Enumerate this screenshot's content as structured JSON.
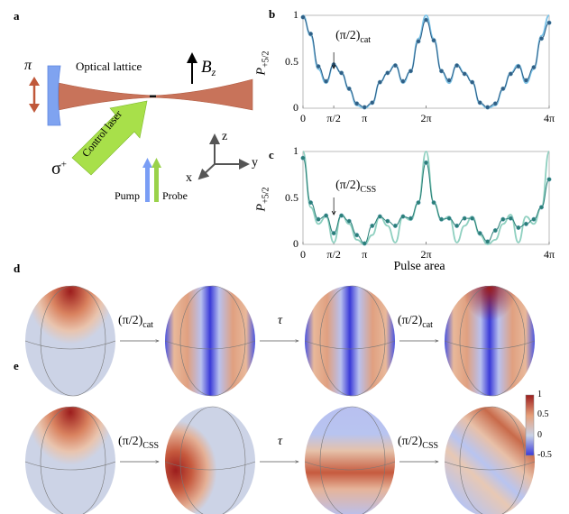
{
  "panels": {
    "a": "a",
    "b": "b",
    "c": "c",
    "d": "d",
    "e": "e"
  },
  "setup": {
    "optical_lattice": "Optical lattice",
    "magnetic_field": "B",
    "magnetic_field_sub": "z",
    "pi_polarization": "π",
    "sigma_polarization": "σ",
    "sigma_sup": "+",
    "control_laser": "Control laser",
    "pump": "Pump",
    "probe": "Probe",
    "axis_x": "x",
    "axis_y": "y",
    "axis_z": "z",
    "colors": {
      "beam": "#c8735a",
      "mirror": "#7fa3f0",
      "control": "#a8e04a",
      "pump": "#7a9ef5",
      "probe": "#9ad24a"
    }
  },
  "chart_data": [
    {
      "panel": "b",
      "type": "line",
      "ylabel": "P",
      "ylabel_sub": "+5/2",
      "xlim": [
        0,
        4
      ],
      "x_unit": "π",
      "ylim": [
        0,
        1
      ],
      "xticks": [
        0,
        0.5,
        1,
        2,
        4
      ],
      "xtick_labels": [
        "0",
        "π/2",
        "π",
        "2π",
        "4π"
      ],
      "yticks": [
        0,
        0.5,
        1
      ],
      "ytick_labels": [
        "0",
        "0.5",
        "1"
      ],
      "annotation": {
        "text": "(π/2)",
        "sub": "cat",
        "x": 0.5
      },
      "x": [
        0,
        0.125,
        0.25,
        0.375,
        0.5,
        0.625,
        0.75,
        0.875,
        1,
        1.125,
        1.25,
        1.375,
        1.5,
        1.625,
        1.75,
        1.875,
        2,
        2.125,
        2.25,
        2.375,
        2.5,
        2.625,
        2.75,
        2.875,
        3,
        3.125,
        3.25,
        3.375,
        3.5,
        3.625,
        3.75,
        3.875,
        4
      ],
      "series": [
        {
          "kind": "theory",
          "color": "#7cc3e8",
          "values": [
            1,
            0.78,
            0.42,
            0.27,
            0.47,
            0.38,
            0.2,
            0.03,
            0,
            0.05,
            0.28,
            0.38,
            0.47,
            0.27,
            0.4,
            0.75,
            1,
            0.75,
            0.4,
            0.27,
            0.47,
            0.38,
            0.28,
            0.05,
            0,
            0.03,
            0.2,
            0.38,
            0.47,
            0.27,
            0.42,
            0.78,
            1
          ]
        },
        {
          "kind": "measured",
          "color": "#2f5f86",
          "values": [
            0.98,
            0.8,
            0.45,
            0.29,
            0.47,
            0.38,
            0.21,
            0.05,
            0.01,
            0.06,
            0.28,
            0.38,
            0.46,
            0.29,
            0.4,
            0.72,
            0.95,
            0.73,
            0.4,
            0.3,
            0.46,
            0.37,
            0.28,
            0.06,
            0.01,
            0.05,
            0.21,
            0.37,
            0.45,
            0.3,
            0.44,
            0.75,
            0.92
          ]
        }
      ]
    },
    {
      "panel": "c",
      "type": "line",
      "ylabel": "P",
      "ylabel_sub": "+5/2",
      "xlabel": "Pulse area",
      "xlim": [
        0,
        4
      ],
      "x_unit": "π",
      "ylim": [
        0,
        1
      ],
      "xticks": [
        0,
        0.5,
        1,
        2,
        4
      ],
      "xtick_labels": [
        "0",
        "π/2",
        "π",
        "2π",
        "4π"
      ],
      "yticks": [
        0,
        0.5,
        1
      ],
      "ytick_labels": [
        "0",
        "0.5",
        "1"
      ],
      "annotation": {
        "text": "(π/2)",
        "sub": "CSS",
        "x": 0.5
      },
      "x": [
        0,
        0.125,
        0.25,
        0.375,
        0.5,
        0.625,
        0.75,
        0.875,
        1,
        1.125,
        1.25,
        1.375,
        1.5,
        1.625,
        1.75,
        1.875,
        2,
        2.125,
        2.25,
        2.375,
        2.5,
        2.625,
        2.75,
        2.875,
        3,
        3.125,
        3.25,
        3.375,
        3.5,
        3.625,
        3.75,
        3.875,
        4
      ],
      "series": [
        {
          "kind": "theory",
          "color": "#8fd0c0",
          "values": [
            1,
            0.4,
            0.22,
            0.3,
            0.02,
            0.32,
            0.22,
            0.05,
            0,
            0.1,
            0.3,
            0.2,
            0.02,
            0.3,
            0.26,
            0.45,
            1,
            0.45,
            0.26,
            0.3,
            0.02,
            0.2,
            0.3,
            0.1,
            0,
            0.05,
            0.22,
            0.32,
            0.02,
            0.3,
            0.22,
            0.4,
            1
          ]
        },
        {
          "kind": "measured",
          "color": "#2a7f78",
          "values": [
            0.93,
            0.45,
            0.27,
            0.31,
            0.12,
            0.31,
            0.25,
            0.1,
            0.01,
            0.2,
            0.3,
            0.25,
            0.2,
            0.3,
            0.28,
            0.45,
            0.88,
            0.45,
            0.27,
            0.28,
            0.2,
            0.28,
            0.28,
            0.12,
            0.03,
            0.15,
            0.27,
            0.28,
            0.18,
            0.22,
            0.27,
            0.4,
            0.7
          ]
        }
      ]
    }
  ],
  "sphere_rows": {
    "d": {
      "arrows": [
        {
          "text": "(π/2)",
          "sub": "cat"
        },
        {
          "text": "τ",
          "sub": ""
        },
        {
          "text": "(π/2)",
          "sub": "cat"
        }
      ]
    },
    "e": {
      "arrows": [
        {
          "text": "(π/2)",
          "sub": "CSS"
        },
        {
          "text": "τ",
          "sub": ""
        },
        {
          "text": "(π/2)",
          "sub": "CSS"
        }
      ]
    }
  },
  "colorbar": {
    "tick_labels": [
      "1",
      "0.5",
      "0",
      "-0.5"
    ],
    "range": [
      -0.5,
      1
    ],
    "colors": [
      "#3a3ad8",
      "#c9d2e6",
      "#e6a07a",
      "#9c1d1d"
    ]
  }
}
